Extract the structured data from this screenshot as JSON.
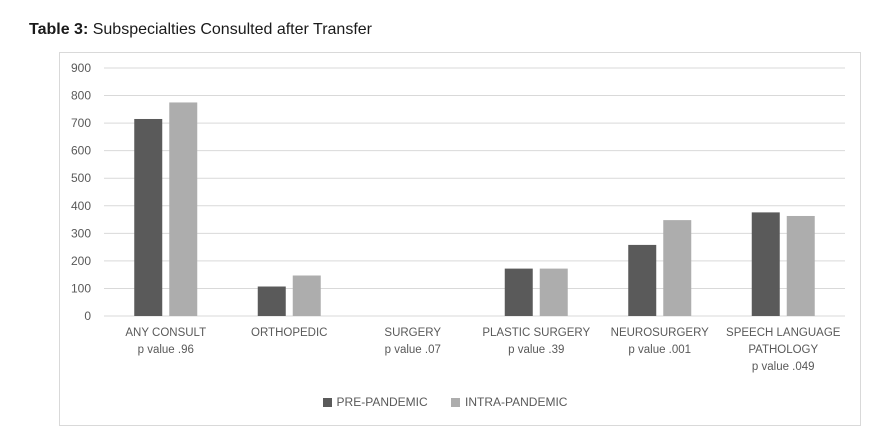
{
  "title_prefix": "Table 3:",
  "title_rest": " Subspecialties Consulted after Transfer",
  "colors": {
    "pre": "#5a5a5a",
    "intra": "#adadad",
    "grid": "#d9d9d9",
    "text": "#595959"
  },
  "chart_data": {
    "type": "bar",
    "title": "Table 3: Subspecialties Consulted after Transfer",
    "xlabel": "",
    "ylabel": "",
    "ylim": [
      0,
      900
    ],
    "yticks": [
      0,
      100,
      200,
      300,
      400,
      500,
      600,
      700,
      800,
      900
    ],
    "grid": true,
    "legend_position": "bottom",
    "categories": [
      {
        "lines": [
          "ANY CONSULT"
        ],
        "pvalue": "p value .96"
      },
      {
        "lines": [
          "ORTHOPEDIC"
        ],
        "pvalue": ""
      },
      {
        "lines": [
          "SURGERY"
        ],
        "pvalue": "p value .07"
      },
      {
        "lines": [
          "PLASTIC SURGERY"
        ],
        "pvalue": "p value .39"
      },
      {
        "lines": [
          "NEUROSURGERY"
        ],
        "pvalue": "p value .001"
      },
      {
        "lines": [
          "SPEECH LANGUAGE",
          "PATHOLOGY"
        ],
        "pvalue": "p value .049"
      }
    ],
    "series": [
      {
        "name": "PRE-PANDEMIC",
        "key": "pre",
        "values": [
          715,
          107,
          0,
          172,
          258,
          376
        ]
      },
      {
        "name": "INTRA-PANDEMIC",
        "key": "intra",
        "values": [
          775,
          147,
          0,
          172,
          348,
          363
        ]
      }
    ]
  }
}
